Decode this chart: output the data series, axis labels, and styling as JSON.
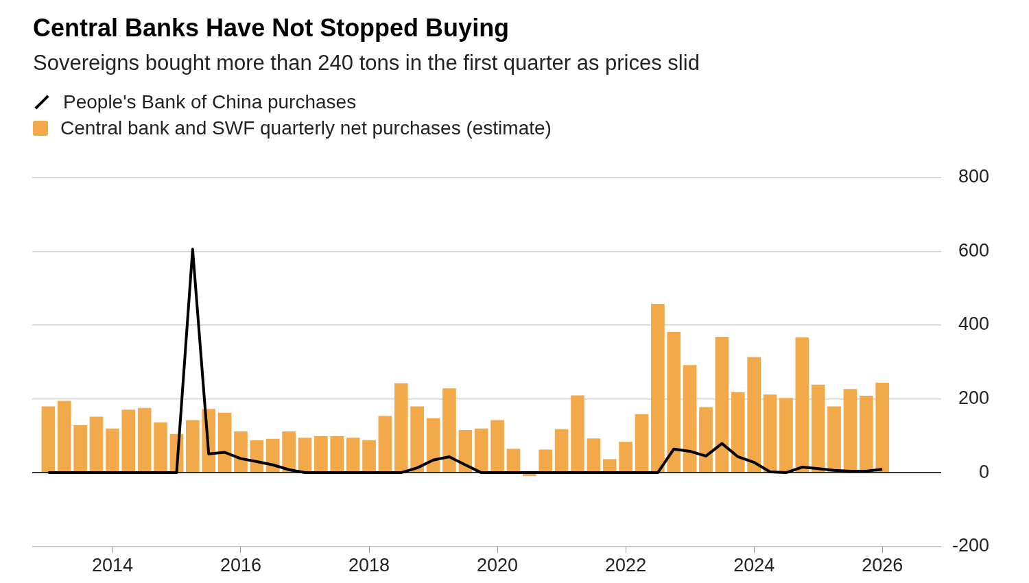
{
  "chart_data": {
    "type": "bar",
    "title": "Central Banks Have Not Stopped Buying",
    "subtitle": "Sovereigns bought more than 240 tons in the first quarter as prices slid",
    "x": [
      "2013-01",
      "2013-04",
      "2013-07",
      "2013-10",
      "2014-01",
      "2014-04",
      "2014-07",
      "2014-10",
      "2015-01",
      "2015-04",
      "2015-07",
      "2015-10",
      "2016-01",
      "2016-04",
      "2016-07",
      "2016-10",
      "2017-01",
      "2017-04",
      "2017-07",
      "2017-10",
      "2018-01",
      "2018-04",
      "2018-07",
      "2018-10",
      "2019-01",
      "2019-04",
      "2019-07",
      "2019-10",
      "2020-01",
      "2020-04",
      "2020-07",
      "2020-10",
      "2021-01",
      "2021-04",
      "2021-07",
      "2021-10",
      "2022-01",
      "2022-04",
      "2022-07",
      "2022-10",
      "2023-01",
      "2023-04",
      "2023-07",
      "2023-10",
      "2024-01",
      "2024-04",
      "2024-07",
      "2024-10",
      "2025-01",
      "2025-04",
      "2025-07",
      "2025-10",
      "2026-01"
    ],
    "series": [
      {
        "name": "People's Bank of China purchases",
        "type": "line",
        "color": "#000000",
        "values": [
          0,
          0,
          0,
          0,
          0,
          0,
          0,
          0,
          0,
          606,
          51,
          55,
          38,
          30,
          21,
          8,
          0,
          0,
          0,
          0,
          0,
          0,
          0,
          13,
          34,
          43,
          21,
          0,
          0,
          0,
          0,
          0,
          0,
          0,
          0,
          0,
          0,
          0,
          0,
          64,
          58,
          45,
          79,
          43,
          28,
          2,
          0,
          15,
          11,
          6,
          4,
          4,
          9
        ]
      },
      {
        "name": "Central bank and SWF quarterly net purchases (estimate)",
        "color": "#f2a94a",
        "values": [
          179,
          194,
          128,
          151,
          119,
          170,
          175,
          136,
          104,
          142,
          172,
          162,
          111,
          87,
          91,
          111,
          94,
          98,
          98,
          94,
          87,
          153,
          242,
          179,
          147,
          228,
          115,
          119,
          142,
          64,
          -9,
          62,
          117,
          209,
          92,
          36,
          83,
          158,
          457,
          381,
          291,
          177,
          368,
          217,
          313,
          211,
          202,
          366,
          238,
          179,
          226,
          208,
          243
        ]
      }
    ],
    "xlim": [
      "2012-10",
      "2026-12"
    ],
    "xticks": [
      "2014",
      "2016",
      "2018",
      "2020",
      "2022",
      "2024",
      "2026"
    ],
    "ylim": [
      -200,
      800
    ],
    "yticks": [
      -200,
      0,
      200,
      400,
      600,
      800
    ],
    "grid": "y",
    "legend": "top left",
    "marker": "none"
  }
}
